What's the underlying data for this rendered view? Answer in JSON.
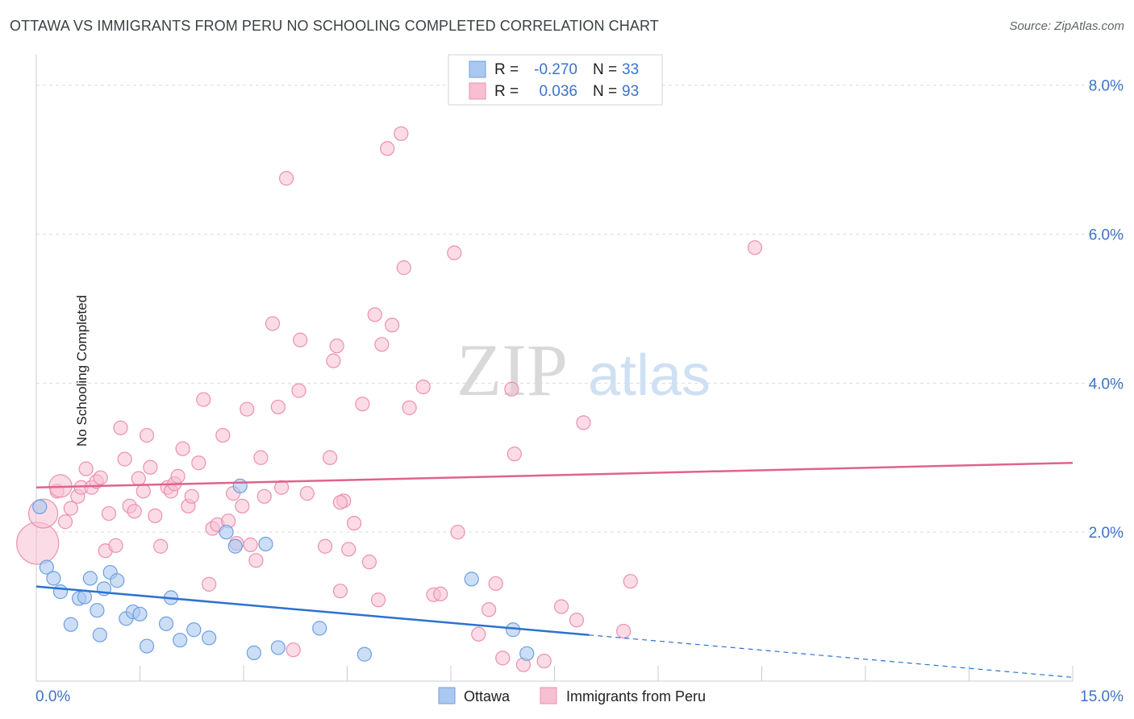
{
  "title": "OTTAWA VS IMMIGRANTS FROM PERU NO SCHOOLING COMPLETED CORRELATION CHART",
  "source": "Source: ZipAtlas.com",
  "watermark": {
    "zip": "ZIP",
    "atlas": "atlas"
  },
  "legend_top": {
    "rows": [
      {
        "r_label": "R =",
        "r_value": "-0.270",
        "n_label": "N =",
        "n_value": "33"
      },
      {
        "r_label": "R =",
        "r_value": "0.036",
        "n_label": "N =",
        "n_value": "93"
      }
    ]
  },
  "legend_bottom": {
    "items": [
      "Ottawa",
      "Immigrants from Peru"
    ]
  },
  "colors": {
    "ottawa_fill": "#aac8f0",
    "ottawa_stroke": "#6d9fe0",
    "ottawa_line": "#2b72d0",
    "peru_fill": "#f7bfd2",
    "peru_stroke": "#ec8fb0",
    "peru_line": "#e0628f",
    "axis_text": "#3a74c9",
    "grid": "#d8dbe0"
  },
  "chart_data": {
    "type": "scatter",
    "title": "OTTAWA VS IMMIGRANTS FROM PERU NO SCHOOLING COMPLETED CORRELATION CHART",
    "xlabel": "",
    "ylabel": "No Schooling Completed",
    "xlim": [
      0,
      15
    ],
    "ylim": [
      0,
      8.3
    ],
    "x_tick_labels": [
      "0.0%",
      "15.0%"
    ],
    "y_ticks": [
      2,
      4,
      6,
      8
    ],
    "y_tick_labels": [
      "2.0%",
      "4.0%",
      "6.0%",
      "8.0%"
    ],
    "series": [
      {
        "name": "Ottawa",
        "r": -0.27,
        "n": 33,
        "trend": {
          "x0": 0,
          "y0": 1.27,
          "x1": 15,
          "y1": 0.05,
          "solid_until": 8.0
        },
        "points": [
          [
            0.05,
            2.34
          ],
          [
            0.15,
            1.53
          ],
          [
            0.25,
            1.38
          ],
          [
            0.35,
            1.2
          ],
          [
            0.5,
            0.76
          ],
          [
            0.62,
            1.11
          ],
          [
            0.7,
            1.13
          ],
          [
            0.78,
            1.38
          ],
          [
            0.88,
            0.95
          ],
          [
            0.92,
            0.62
          ],
          [
            0.98,
            1.24
          ],
          [
            1.07,
            1.46
          ],
          [
            1.17,
            1.35
          ],
          [
            1.3,
            0.84
          ],
          [
            1.4,
            0.93
          ],
          [
            1.5,
            0.9
          ],
          [
            1.6,
            0.47
          ],
          [
            1.88,
            0.77
          ],
          [
            1.95,
            1.12
          ],
          [
            2.08,
            0.55
          ],
          [
            2.28,
            0.69
          ],
          [
            2.5,
            0.58
          ],
          [
            2.75,
            2.0
          ],
          [
            2.88,
            1.81
          ],
          [
            2.95,
            2.62
          ],
          [
            3.15,
            0.38
          ],
          [
            3.32,
            1.84
          ],
          [
            3.5,
            0.45
          ],
          [
            4.1,
            0.71
          ],
          [
            4.75,
            0.36
          ],
          [
            6.3,
            1.37
          ],
          [
            6.9,
            0.69
          ],
          [
            7.1,
            0.37
          ]
        ],
        "sizes": [
          16
        ]
      },
      {
        "name": "Immigrants from Peru",
        "r": 0.036,
        "n": 93,
        "trend": {
          "x0": 0,
          "y0": 2.6,
          "x1": 15,
          "y1": 2.93
        },
        "points": [
          [
            0.02,
            1.85
          ],
          [
            0.1,
            2.25
          ],
          [
            0.3,
            2.55
          ],
          [
            0.35,
            2.62
          ],
          [
            0.42,
            2.14
          ],
          [
            0.5,
            2.32
          ],
          [
            0.6,
            2.48
          ],
          [
            0.65,
            2.6
          ],
          [
            0.72,
            2.85
          ],
          [
            0.8,
            2.6
          ],
          [
            0.87,
            2.68
          ],
          [
            0.93,
            2.73
          ],
          [
            1.0,
            1.75
          ],
          [
            1.05,
            2.25
          ],
          [
            1.15,
            1.82
          ],
          [
            1.22,
            3.4
          ],
          [
            1.28,
            2.98
          ],
          [
            1.35,
            2.35
          ],
          [
            1.42,
            2.28
          ],
          [
            1.48,
            2.72
          ],
          [
            1.55,
            2.55
          ],
          [
            1.6,
            3.3
          ],
          [
            1.65,
            2.87
          ],
          [
            1.72,
            2.22
          ],
          [
            1.8,
            1.81
          ],
          [
            1.9,
            2.6
          ],
          [
            1.95,
            2.55
          ],
          [
            2.0,
            2.65
          ],
          [
            2.05,
            2.75
          ],
          [
            2.12,
            3.12
          ],
          [
            2.2,
            2.35
          ],
          [
            2.25,
            2.48
          ],
          [
            2.35,
            2.93
          ],
          [
            2.42,
            3.78
          ],
          [
            2.5,
            1.3
          ],
          [
            2.55,
            2.05
          ],
          [
            2.62,
            2.1
          ],
          [
            2.7,
            3.3
          ],
          [
            2.78,
            2.15
          ],
          [
            2.85,
            2.52
          ],
          [
            2.9,
            1.85
          ],
          [
            2.98,
            2.35
          ],
          [
            3.05,
            3.65
          ],
          [
            3.1,
            1.83
          ],
          [
            3.18,
            1.62
          ],
          [
            3.25,
            3.0
          ],
          [
            3.3,
            2.48
          ],
          [
            3.42,
            4.8
          ],
          [
            3.5,
            3.68
          ],
          [
            3.55,
            2.6
          ],
          [
            3.62,
            6.75
          ],
          [
            3.72,
            0.42
          ],
          [
            3.82,
            4.58
          ],
          [
            3.92,
            2.52
          ],
          [
            4.18,
            1.81
          ],
          [
            4.25,
            3.0
          ],
          [
            4.3,
            4.3
          ],
          [
            4.35,
            4.5
          ],
          [
            4.4,
            1.21
          ],
          [
            4.45,
            2.42
          ],
          [
            4.52,
            1.77
          ],
          [
            4.6,
            2.12
          ],
          [
            4.72,
            3.72
          ],
          [
            4.82,
            1.6
          ],
          [
            4.9,
            4.92
          ],
          [
            4.95,
            1.09
          ],
          [
            5.0,
            4.52
          ],
          [
            5.08,
            7.15
          ],
          [
            5.15,
            4.78
          ],
          [
            5.28,
            7.35
          ],
          [
            5.32,
            5.55
          ],
          [
            5.4,
            3.67
          ],
          [
            5.6,
            3.95
          ],
          [
            5.75,
            1.16
          ],
          [
            5.85,
            1.17
          ],
          [
            6.05,
            5.75
          ],
          [
            6.1,
            2.0
          ],
          [
            6.4,
            0.63
          ],
          [
            6.55,
            0.96
          ],
          [
            6.65,
            1.31
          ],
          [
            6.75,
            0.31
          ],
          [
            6.88,
            3.92
          ],
          [
            6.92,
            3.05
          ],
          [
            7.05,
            0.22
          ],
          [
            7.35,
            0.27
          ],
          [
            7.6,
            1.0
          ],
          [
            7.82,
            0.82
          ],
          [
            7.92,
            3.47
          ],
          [
            8.5,
            0.67
          ],
          [
            8.6,
            1.34
          ],
          [
            10.4,
            5.82
          ],
          [
            4.4,
            2.4
          ],
          [
            3.8,
            3.9
          ]
        ],
        "big_points": [
          [
            0.02,
            1.85,
            26
          ],
          [
            0.1,
            2.25,
            18
          ],
          [
            0.35,
            2.62,
            14
          ]
        ]
      }
    ]
  },
  "axis_labels": {
    "ylabel": "No Schooling Completed"
  }
}
